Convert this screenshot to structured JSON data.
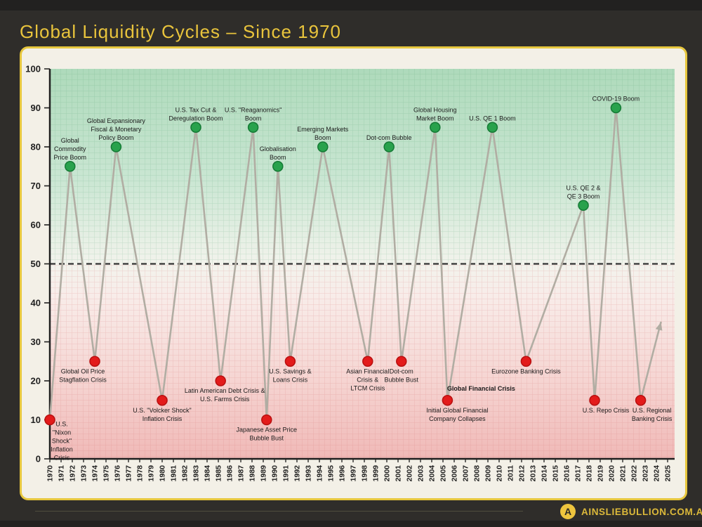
{
  "page": {
    "title": "Global Liquidity Cycles – Since 1970",
    "background_color": "#2f2d2a",
    "accent_color": "#e9c43c",
    "card_background": "#f3f0e7",
    "card_border_color": "#e7c73e"
  },
  "footer": {
    "brand": "AINSLIEBULLION.COM.AU",
    "logo_letter": "A"
  },
  "chart_data": {
    "type": "line",
    "title": "Global Liquidity Cycles – Since 1970",
    "xlabel": "",
    "ylabel": "",
    "xlim": [
      1970,
      2025
    ],
    "ylim": [
      0,
      100
    ],
    "grid": true,
    "legend": "none",
    "baseline_value": 50,
    "x_ticks": [
      1970,
      1971,
      1972,
      1973,
      1974,
      1975,
      1976,
      1977,
      1978,
      1979,
      1980,
      1981,
      1982,
      1983,
      1984,
      1985,
      1986,
      1987,
      1988,
      1989,
      1990,
      1991,
      1992,
      1993,
      1994,
      1995,
      1996,
      1997,
      1998,
      1999,
      2000,
      2001,
      2002,
      2003,
      2004,
      2005,
      2006,
      2007,
      2008,
      2009,
      2010,
      2011,
      2012,
      2013,
      2014,
      2015,
      2016,
      2017,
      2018,
      2019,
      2020,
      2021,
      2022,
      2023,
      2024,
      2025
    ],
    "y_ticks": [
      0,
      10,
      20,
      30,
      40,
      50,
      60,
      70,
      80,
      90,
      100
    ],
    "points": [
      {
        "x": 1970,
        "y": 10,
        "kind": "crisis",
        "label": [
          "U.S.",
          "\"Nixon",
          "Shock\"",
          "Inflation",
          "Crisis"
        ],
        "placement": "right"
      },
      {
        "x": 1971.8,
        "y": 75,
        "kind": "boom",
        "label": [
          "Global",
          "Commodity",
          "Price Boom"
        ],
        "placement": "above"
      },
      {
        "x": 1974,
        "y": 25,
        "kind": "crisis",
        "label": [
          "Global Oil Price",
          "Stagflation Crisis"
        ],
        "placement": "below",
        "dx": -17
      },
      {
        "x": 1975.9,
        "y": 80,
        "kind": "boom",
        "label": [
          "Global Expansionary",
          "Fiscal & Monetary",
          "Policy Boom"
        ],
        "placement": "above"
      },
      {
        "x": 1980,
        "y": 15,
        "kind": "crisis",
        "label": [
          "U.S. \"Volcker Shock\"",
          "Inflation Crisis"
        ],
        "placement": "below"
      },
      {
        "x": 1983,
        "y": 85,
        "kind": "boom",
        "label": [
          "U.S. Tax Cut &",
          "Deregulation Boom"
        ],
        "placement": "above"
      },
      {
        "x": 1985.2,
        "y": 20,
        "kind": "crisis",
        "label": [
          "Latin American Debt Crisis &",
          "U.S. Farms Crisis"
        ],
        "placement": "below",
        "dx": 6
      },
      {
        "x": 1988.1,
        "y": 85,
        "kind": "boom",
        "label": [
          "U.S. \"Reaganomics\"",
          "Boom"
        ],
        "placement": "above"
      },
      {
        "x": 1989.3,
        "y": 10,
        "kind": "crisis",
        "label": [
          "Japanese Asset Price",
          "Bubble Bust"
        ],
        "placement": "below"
      },
      {
        "x": 1990.3,
        "y": 75,
        "kind": "boom",
        "label": [
          "Globalisation",
          "Boom"
        ],
        "placement": "above"
      },
      {
        "x": 1991.4,
        "y": 25,
        "kind": "crisis",
        "label": [
          "U.S. Savings &",
          "Loans Crisis"
        ],
        "placement": "below"
      },
      {
        "x": 1994.3,
        "y": 80,
        "kind": "boom",
        "label": [
          "Emerging Markets",
          "Boom"
        ],
        "placement": "above"
      },
      {
        "x": 1998.3,
        "y": 25,
        "kind": "crisis",
        "label": [
          "Asian Financial",
          "Crisis &",
          "LTCM Crisis"
        ],
        "placement": "below"
      },
      {
        "x": 2000.2,
        "y": 80,
        "kind": "boom",
        "label": [
          "Dot-com Bubble"
        ],
        "placement": "above"
      },
      {
        "x": 2001.3,
        "y": 25,
        "kind": "crisis",
        "label": [
          "Dot-com",
          "Bubble Bust"
        ],
        "placement": "below"
      },
      {
        "x": 2004.3,
        "y": 85,
        "kind": "boom",
        "label": [
          "Global Housing",
          "Market Boom"
        ],
        "placement": "above"
      },
      {
        "x": 2005.4,
        "y": 15,
        "kind": "crisis",
        "label": [
          "Initial Global Financial",
          "Company Collapses"
        ],
        "placement": "below",
        "dx": 14,
        "extra_label": {
          "text": "Global Financial Crisis",
          "dx": 48,
          "dy": -14,
          "bold": true
        }
      },
      {
        "x": 2009.4,
        "y": 85,
        "kind": "boom",
        "label": [
          "U.S. QE 1 Boom"
        ],
        "placement": "above"
      },
      {
        "x": 2012.4,
        "y": 25,
        "kind": "crisis",
        "label": [
          "Eurozone Banking Crisis"
        ],
        "placement": "below"
      },
      {
        "x": 2017.5,
        "y": 65,
        "kind": "boom",
        "label": [
          "U.S. QE 2 &",
          "QE 3 Boom"
        ],
        "placement": "above"
      },
      {
        "x": 2018.5,
        "y": 15,
        "kind": "crisis",
        "label": [
          "U.S. Repo Crisis"
        ],
        "placement": "below",
        "dx": 16
      },
      {
        "x": 2020.4,
        "y": 90,
        "kind": "boom",
        "label": [
          "COVID-19 Boom"
        ],
        "placement": "above"
      },
      {
        "x": 2022.6,
        "y": 15,
        "kind": "crisis",
        "label": [
          "U.S. Regional",
          "Banking Crisis"
        ],
        "placement": "below",
        "dx": 16
      }
    ],
    "trend_arrow_end": {
      "x": 2024.4,
      "y": 35
    },
    "colors": {
      "boom_dot": "#28a24c",
      "boom_dot_border": "#157a35",
      "crisis_dot": "#e31b1b",
      "crisis_dot_border": "#b81010",
      "line": "#b1ada3",
      "axis": "#1f1f1f",
      "baseline": "#333333",
      "label_text": "#1b1b1b",
      "bg_top": "#aedabb",
      "bg_upper": "#c9e6d2",
      "bg_mid": "#f2f3ec",
      "bg_lower": "#f6d7d4",
      "bg_bottom": "#f0b9b7",
      "grid_green": "rgba(70,150,100,0.22)",
      "grid_pink": "rgba(210,110,110,0.26)"
    }
  }
}
